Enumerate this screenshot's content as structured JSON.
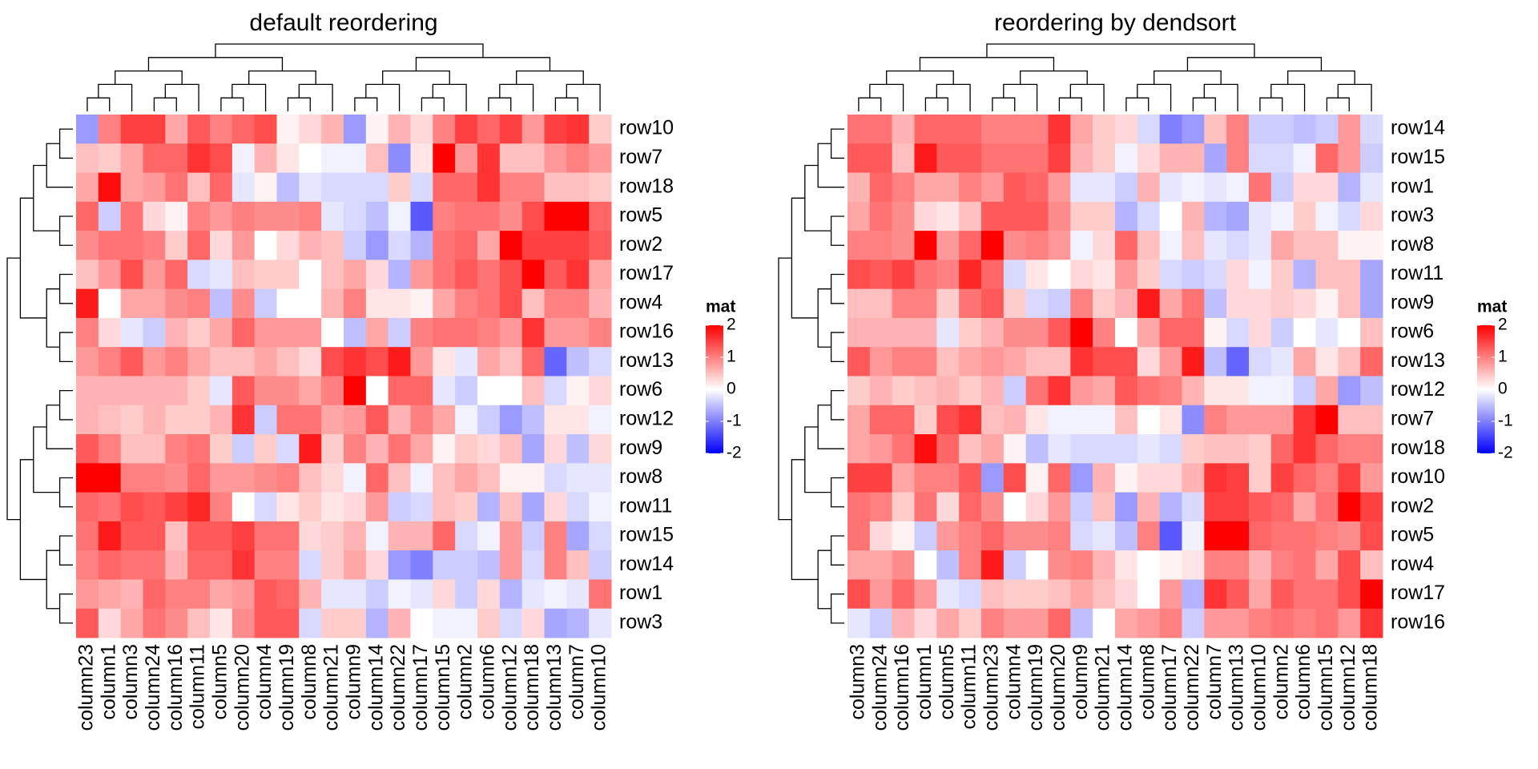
{
  "chart_data": [
    {
      "type": "heatmap",
      "title": "default reordering",
      "legend_title": "mat",
      "colors": [
        "#0000ff",
        "#ffffff",
        "#ff0000"
      ],
      "clim": [
        -2,
        2
      ],
      "cticks": [
        2,
        1,
        0,
        -1,
        -2
      ],
      "x": [
        "column23",
        "column1",
        "column3",
        "column24",
        "column16",
        "column11",
        "column5",
        "column20",
        "column4",
        "column19",
        "column8",
        "column21",
        "column9",
        "column14",
        "column22",
        "column17",
        "column15",
        "column2",
        "column6",
        "column12",
        "column18",
        "column13",
        "column7",
        "column10"
      ],
      "y": [
        "row10",
        "row7",
        "row18",
        "row5",
        "row2",
        "row17",
        "row4",
        "row16",
        "row13",
        "row6",
        "row12",
        "row9",
        "row8",
        "row11",
        "row15",
        "row14",
        "row1",
        "row3"
      ],
      "values": [
        [
          -0.8,
          1,
          1.5,
          1.5,
          0.7,
          1.3,
          1,
          1.2,
          1.4,
          0.1,
          0.3,
          0.6,
          -0.8,
          0.1,
          0.6,
          0.3,
          1,
          1.5,
          1.2,
          1.5,
          0.8,
          1.5,
          1.6,
          0.4
        ],
        [
          0.5,
          0.4,
          0.7,
          1.2,
          1.2,
          1.6,
          1.4,
          -0.1,
          0.6,
          0.2,
          0,
          -0.1,
          -0.1,
          0.5,
          -0.9,
          0.2,
          2,
          0.8,
          1.6,
          0.5,
          0.5,
          0.8,
          1,
          0.8
        ],
        [
          0.7,
          1.9,
          0.7,
          0.8,
          1.1,
          0.5,
          1.2,
          -0.2,
          0.1,
          -0.5,
          -0.2,
          -0.3,
          -0.3,
          -0.3,
          0.4,
          -0.3,
          1.2,
          1.2,
          1.6,
          1,
          1,
          0.5,
          0.5,
          0.4
        ],
        [
          1.2,
          -0.4,
          1.1,
          0.3,
          0.1,
          1,
          0.8,
          1,
          0.9,
          0.9,
          1,
          -0.2,
          -0.3,
          -0.5,
          -0.1,
          -1.3,
          1,
          1.1,
          1.1,
          0.9,
          1.4,
          2,
          2,
          1.2
        ],
        [
          0.9,
          1.1,
          1.1,
          1,
          0.4,
          1.2,
          0.3,
          0.8,
          0,
          0.3,
          0.6,
          0.5,
          -0.4,
          -0.8,
          -0.3,
          -0.6,
          1.1,
          1.2,
          0.7,
          2,
          1.5,
          1.5,
          1.5,
          1.3
        ],
        [
          0.5,
          0.8,
          1.4,
          0.8,
          1.2,
          -0.3,
          -0.2,
          0.5,
          0.4,
          0.4,
          0,
          0.5,
          0.7,
          0.3,
          -0.6,
          0.8,
          1.1,
          1.3,
          1.1,
          1.4,
          2,
          1.3,
          1.6,
          0.7
        ],
        [
          1.8,
          0,
          0.7,
          0.7,
          0.9,
          1,
          -0.5,
          0.9,
          -0.4,
          0,
          0,
          0.6,
          1,
          0.2,
          0.2,
          0.1,
          0.7,
          1,
          1.1,
          1.4,
          0.5,
          1,
          1,
          0.6
        ],
        [
          1,
          0.3,
          -0.2,
          -0.4,
          0.6,
          0.4,
          0.7,
          1.2,
          0.8,
          0.8,
          0.8,
          0,
          -0.5,
          0.7,
          -0.4,
          1,
          1.1,
          1.1,
          1,
          0.8,
          1.6,
          0.8,
          0.8,
          1
        ],
        [
          0.8,
          1,
          1.3,
          0.8,
          1,
          0.7,
          0.5,
          0.5,
          0.7,
          0.5,
          0.3,
          1.4,
          1.6,
          1.4,
          1.8,
          0.8,
          0.2,
          -0.2,
          0.7,
          0.5,
          1.2,
          -1.2,
          -0.5,
          -0.3
        ],
        [
          0.6,
          0.6,
          0.6,
          0.6,
          0.6,
          0.4,
          -0.2,
          1.3,
          0.9,
          0.9,
          0.7,
          1,
          2,
          0,
          1.2,
          1.2,
          -0.2,
          -0.4,
          0,
          0,
          0.5,
          -0.3,
          0.1,
          0.3
        ],
        [
          0.6,
          0.5,
          0.4,
          0.6,
          0.4,
          0.4,
          0.6,
          1.6,
          -0.4,
          1.1,
          1.1,
          0.7,
          0.8,
          1.3,
          0.6,
          1,
          0.7,
          -0.1,
          -0.4,
          -0.8,
          -0.5,
          0.2,
          0.2,
          -0.1
        ],
        [
          1.3,
          1,
          0.5,
          0.5,
          1,
          1.1,
          0.4,
          -0.4,
          0.4,
          -0.3,
          1.8,
          0.4,
          1,
          0.6,
          1.1,
          0.7,
          0.1,
          0.4,
          0.3,
          0.5,
          -0.7,
          0.3,
          -0.5,
          0.3
        ],
        [
          2,
          2,
          1,
          1,
          0.9,
          1.2,
          0.8,
          0.8,
          0.9,
          1,
          0.5,
          0.3,
          -0.1,
          1.2,
          0.5,
          -0.1,
          0.5,
          0.7,
          0.5,
          0.1,
          0.1,
          -0.3,
          -0.2,
          -0.2
        ],
        [
          1.2,
          1.1,
          1.4,
          1.3,
          1.5,
          1.7,
          1,
          0,
          -0.3,
          0.2,
          0.4,
          0.2,
          0.3,
          0.8,
          -0.4,
          -0.3,
          0.5,
          0.4,
          -0.6,
          0.5,
          -0.7,
          0.3,
          -0.3,
          -0.1
        ],
        [
          1.1,
          1.8,
          1.3,
          1.3,
          0.5,
          1.3,
          1.3,
          1.5,
          1.1,
          1.1,
          0.3,
          0.4,
          0.6,
          -0.1,
          0.6,
          0.6,
          1.2,
          -0.3,
          -0.1,
          0.8,
          -0.4,
          1,
          -0.7,
          -0.3
        ],
        [
          1,
          1.2,
          1.1,
          1.1,
          0.6,
          1.2,
          1.2,
          1.6,
          1,
          1,
          -0.3,
          0.4,
          0.7,
          0.3,
          -0.8,
          -1,
          -0.4,
          -0.4,
          -0.5,
          0.8,
          -0.3,
          1,
          0.5,
          -0.4
        ],
        [
          0.8,
          0.7,
          0.6,
          1.2,
          1,
          1,
          0.7,
          0.8,
          1.3,
          1.2,
          0.6,
          -0.2,
          -0.2,
          -0.4,
          -0.1,
          -0.2,
          0.3,
          -0.4,
          0.3,
          -0.6,
          -0.2,
          -0.1,
          -0.2,
          1.1
        ],
        [
          1.3,
          0.3,
          0.7,
          1.1,
          0.9,
          0.5,
          0.2,
          0.9,
          1.3,
          1.3,
          -0.3,
          0.4,
          0.4,
          -0.6,
          0.6,
          0,
          -0.1,
          -0.1,
          0.4,
          -0.3,
          0.3,
          -0.7,
          -0.6,
          -0.2
        ]
      ]
    },
    {
      "type": "heatmap",
      "title": "reordering by dendsort",
      "legend_title": "mat",
      "colors": [
        "#0000ff",
        "#ffffff",
        "#ff0000"
      ],
      "clim": [
        -2,
        2
      ],
      "cticks": [
        2,
        1,
        0,
        -1,
        -2
      ],
      "x": [
        "column3",
        "column24",
        "column16",
        "column1",
        "column5",
        "column11",
        "column23",
        "column4",
        "column19",
        "column20",
        "column9",
        "column21",
        "column14",
        "column8",
        "column17",
        "column22",
        "column7",
        "column13",
        "column10",
        "column2",
        "column6",
        "column15",
        "column12",
        "column18"
      ],
      "y": [
        "row14",
        "row15",
        "row1",
        "row3",
        "row8",
        "row11",
        "row9",
        "row6",
        "row13",
        "row12",
        "row7",
        "row18",
        "row10",
        "row2",
        "row5",
        "row4",
        "row17",
        "row16"
      ],
      "values": [
        [
          1.1,
          1.1,
          0.6,
          1.2,
          1.2,
          1.2,
          1,
          1,
          1,
          1.6,
          0.7,
          0.4,
          0.3,
          -0.3,
          -1,
          -0.8,
          0.5,
          1,
          -0.4,
          -0.4,
          -0.5,
          -0.4,
          0.8,
          -0.3
        ],
        [
          1.3,
          1.3,
          0.5,
          1.8,
          1.3,
          1.3,
          1.1,
          1.1,
          1.1,
          1.5,
          0.6,
          0.4,
          -0.1,
          0.3,
          0.6,
          0.6,
          -0.7,
          1,
          -0.3,
          -0.3,
          -0.1,
          1.2,
          0.8,
          -0.4
        ],
        [
          0.6,
          1.2,
          1,
          0.7,
          0.7,
          1,
          0.8,
          1.3,
          1.2,
          0.8,
          -0.2,
          -0.2,
          -0.4,
          0.6,
          -0.2,
          -0.1,
          -0.2,
          -0.1,
          1.1,
          -0.4,
          0.3,
          0.3,
          -0.6,
          -0.2
        ],
        [
          0.7,
          1.1,
          0.9,
          0.3,
          0.2,
          0.5,
          1.3,
          1.3,
          1.3,
          0.9,
          0.4,
          0.4,
          -0.6,
          -0.3,
          0,
          0.6,
          -0.6,
          -0.7,
          -0.2,
          -0.1,
          0.4,
          -0.1,
          -0.3,
          0.3
        ],
        [
          1,
          1,
          0.9,
          2,
          0.8,
          1.2,
          2,
          0.9,
          1,
          0.8,
          -0.1,
          0.3,
          1.2,
          0.5,
          -0.1,
          0.5,
          -0.2,
          -0.3,
          -0.2,
          0.7,
          0.5,
          0.5,
          0.1,
          0.1
        ],
        [
          1.4,
          1.3,
          1.5,
          1.1,
          1,
          1.7,
          1.2,
          -0.3,
          0.2,
          0,
          0.3,
          0.2,
          0.8,
          0.4,
          -0.3,
          -0.4,
          -0.3,
          0.3,
          -0.1,
          0.4,
          -0.6,
          0.5,
          0.5,
          -0.7
        ],
        [
          0.5,
          0.5,
          1,
          1,
          0.4,
          1.1,
          1.3,
          0.4,
          -0.3,
          -0.4,
          1,
          0.4,
          0.6,
          1.8,
          0.7,
          1.1,
          -0.5,
          0.3,
          0.3,
          0.4,
          0.3,
          0.1,
          0.5,
          -0.7
        ],
        [
          0.6,
          0.6,
          0.6,
          0.6,
          -0.2,
          0.4,
          0.6,
          0.9,
          0.9,
          1.3,
          2,
          1,
          0,
          0.7,
          1.2,
          1.2,
          0.1,
          -0.3,
          0.3,
          -0.4,
          0,
          -0.2,
          0,
          0.5
        ],
        [
          1.3,
          0.8,
          1,
          1,
          0.5,
          0.7,
          0.8,
          0.7,
          0.5,
          0.5,
          1.6,
          1.4,
          1.4,
          0.3,
          0.8,
          1.8,
          -0.5,
          -1.2,
          -0.3,
          -0.2,
          0.7,
          0.2,
          0.5,
          1.2
        ],
        [
          0.4,
          0.6,
          0.4,
          0.5,
          0.6,
          0.4,
          0.6,
          -0.4,
          1.1,
          1.6,
          0.8,
          0.7,
          1.3,
          1.1,
          1,
          0.6,
          0.2,
          0.2,
          -0.1,
          -0.1,
          -0.4,
          0.7,
          -0.8,
          -0.5
        ],
        [
          0.7,
          1.2,
          1.2,
          0.4,
          1.4,
          1.6,
          0.5,
          0.6,
          0.2,
          -0.1,
          -0.1,
          -0.1,
          0.5,
          0,
          0.2,
          -0.9,
          1,
          0.8,
          0.8,
          0.8,
          1.6,
          2,
          0.5,
          0.5
        ],
        [
          0.7,
          0.8,
          1.1,
          1.9,
          1.2,
          0.5,
          0.7,
          0.1,
          -0.5,
          -0.2,
          -0.3,
          -0.3,
          -0.3,
          -0.2,
          -0.3,
          0.4,
          0.5,
          0.5,
          0.4,
          1.2,
          1.6,
          1.2,
          1,
          1
        ],
        [
          1.5,
          1.5,
          0.7,
          1,
          1,
          1.3,
          -0.8,
          1.4,
          0.1,
          1.2,
          -0.8,
          0.6,
          0.1,
          0.3,
          0.3,
          0.6,
          1.6,
          1.5,
          0.4,
          1.5,
          1.2,
          1,
          1.5,
          0.8
        ],
        [
          1.1,
          1,
          0.4,
          1.1,
          0.3,
          1.2,
          0.9,
          0,
          0.3,
          0.8,
          -0.4,
          0.5,
          -0.8,
          0.6,
          -0.6,
          -0.3,
          1.5,
          1.5,
          1.3,
          1.2,
          0.7,
          1.1,
          2,
          1.5
        ],
        [
          1.1,
          0.3,
          0.1,
          -0.4,
          0.8,
          1,
          1.2,
          0.9,
          0.9,
          1,
          -0.3,
          -0.2,
          -0.5,
          1,
          -1.3,
          -0.1,
          2,
          2,
          1.2,
          1.1,
          1.1,
          1,
          0.9,
          1.4
        ],
        [
          0.7,
          0.7,
          0.9,
          0,
          -0.5,
          1,
          1.8,
          -0.4,
          0,
          0.9,
          1,
          0.6,
          0.2,
          0,
          0.1,
          0.2,
          1,
          1,
          0.6,
          1,
          1.1,
          0.7,
          1.4,
          0.5
        ],
        [
          1.4,
          0.8,
          1.2,
          0.8,
          -0.2,
          -0.3,
          0.5,
          0.4,
          0.4,
          0.5,
          0.7,
          0.5,
          0.3,
          0,
          0.8,
          -0.6,
          1.6,
          1.3,
          0.7,
          1.3,
          1.1,
          1.1,
          1.4,
          2
        ],
        [
          -0.2,
          -0.4,
          0.6,
          0.3,
          0.7,
          0.4,
          1,
          0.8,
          0.8,
          1.2,
          -0.5,
          0,
          0.7,
          0.8,
          1,
          -0.4,
          0.8,
          0.8,
          1,
          1.1,
          1,
          1.1,
          0.8,
          1.6
        ]
      ]
    }
  ]
}
